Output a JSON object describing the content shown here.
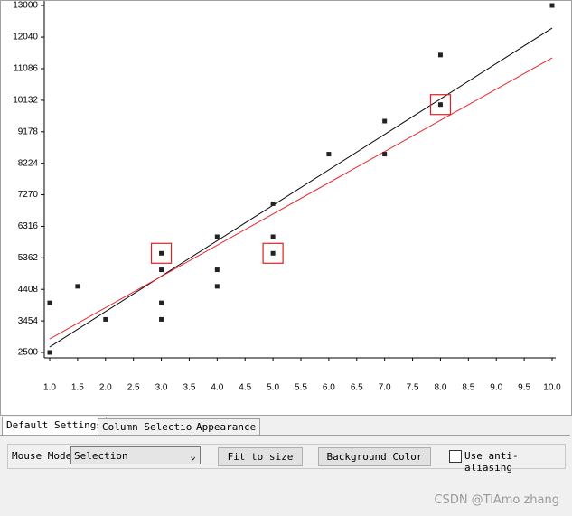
{
  "chart_data": {
    "type": "scatter",
    "color": "#222222",
    "x": [
      1,
      1,
      1.5,
      2,
      3,
      3,
      3,
      3,
      4,
      4,
      4,
      5,
      5,
      5,
      6,
      7,
      7,
      8,
      8,
      10
    ],
    "values": [
      4000,
      2500,
      4500,
      3500,
      5500,
      5000,
      4000,
      3500,
      6000,
      5000,
      4500,
      7000,
      6000,
      5500,
      8500,
      9500,
      8500,
      11500,
      10000,
      13000
    ],
    "highlight_indices": [
      4,
      13,
      18
    ],
    "highlight_color": "#e02020",
    "lines": [
      {
        "color": "#000000",
        "x": [
          1,
          10
        ],
        "values": [
          2664,
          12315
        ]
      },
      {
        "color": "#e8262b",
        "x": [
          1,
          10
        ],
        "values": [
          2910,
          11413
        ]
      }
    ],
    "xlim": [
      1,
      10
    ],
    "ylim": [
      2500,
      13000
    ],
    "xticks": [
      {
        "value": 1,
        "label": "1.0"
      },
      1.5,
      {
        "value": 2,
        "label": "2.0"
      },
      2.5,
      {
        "value": 3,
        "label": "3.0"
      },
      3.5,
      {
        "value": 4,
        "label": "4.0"
      },
      4.5,
      {
        "value": 5,
        "label": "5.0"
      },
      5.5,
      {
        "value": 6,
        "label": "6.0"
      },
      6.5,
      {
        "value": 7,
        "label": "7.0"
      },
      7.5,
      {
        "value": 8,
        "label": "8.0"
      },
      8.5,
      {
        "value": 9,
        "label": "9.0"
      },
      9.5,
      {
        "value": 10,
        "label": "10.0"
      }
    ],
    "yticks": [
      2500,
      3454,
      4408,
      5362,
      6316,
      7270,
      8224,
      9178,
      10132,
      11086,
      12040,
      13000
    ]
  },
  "ui": {
    "tabs": [
      "Default Settings",
      "Column Selection",
      "Appearance"
    ],
    "mouse_mode_label": "Mouse Mode",
    "mouse_mode_value": "Selection",
    "fit_button": "Fit to size",
    "background_button": "Background Color",
    "antialias_label": "Use anti-aliasing",
    "watermark": "CSDN @TiAmo zhang"
  }
}
